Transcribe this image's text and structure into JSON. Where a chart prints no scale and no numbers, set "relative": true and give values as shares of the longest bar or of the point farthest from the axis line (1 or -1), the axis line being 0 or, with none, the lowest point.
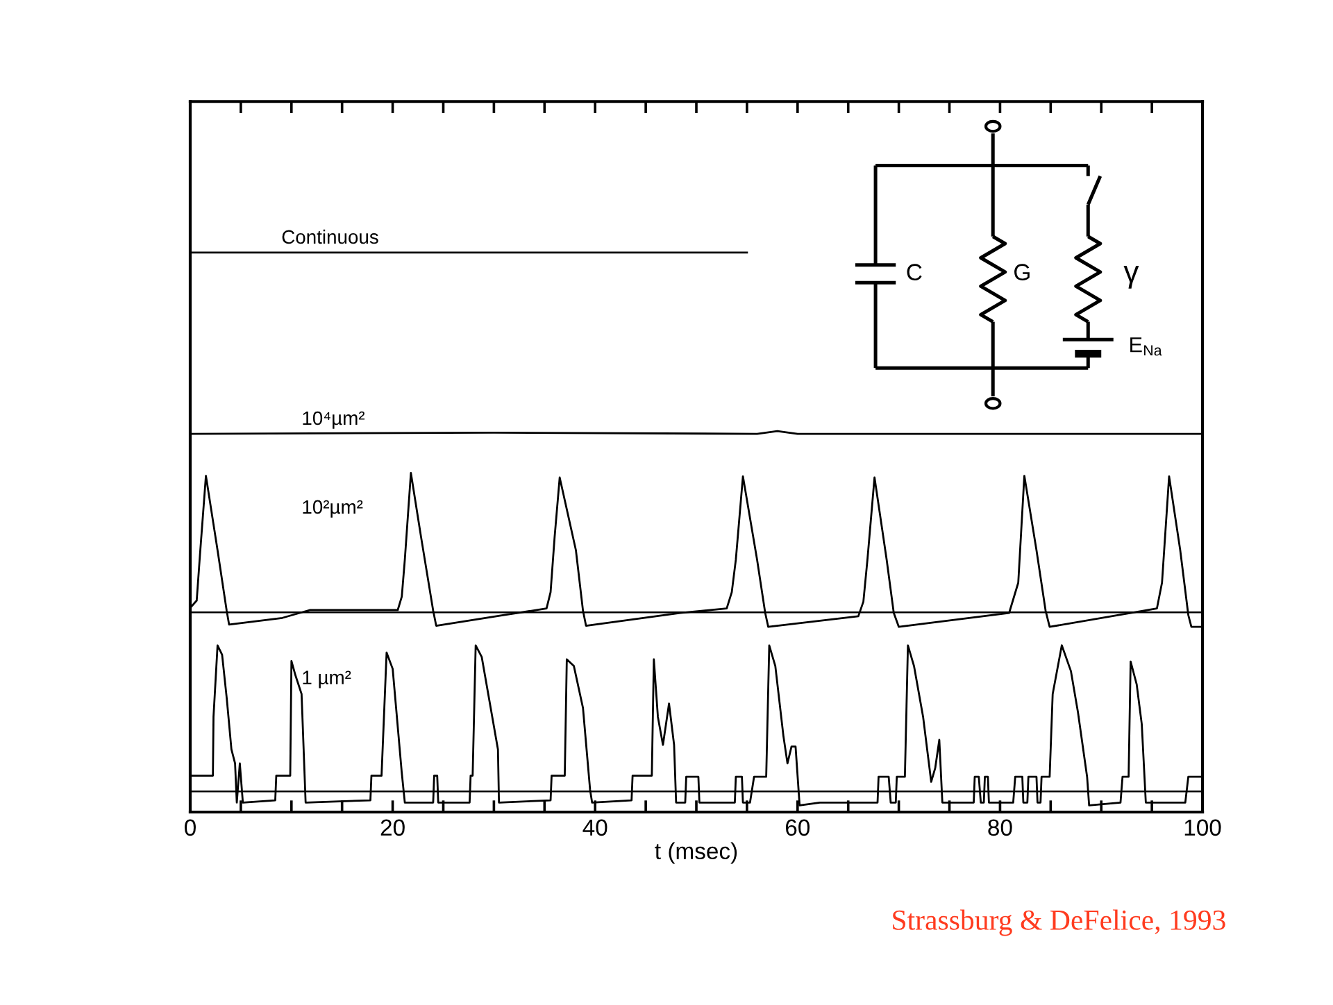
{
  "chart_data": {
    "type": "line",
    "relative": true,
    "xlabel": "t (msec)",
    "xlim": [
      0,
      100
    ],
    "xticks": [
      0,
      {
        "value": 5,
        "label": null
      },
      {
        "value": 10,
        "label": null
      },
      {
        "value": 15,
        "label": null
      },
      20,
      {
        "value": 25,
        "label": null
      },
      {
        "value": 30,
        "label": null
      },
      {
        "value": 35,
        "label": null
      },
      40,
      {
        "value": 45,
        "label": null
      },
      {
        "value": 50,
        "label": null
      },
      {
        "value": 55,
        "label": null
      },
      60,
      {
        "value": 65,
        "label": null
      },
      {
        "value": 70,
        "label": null
      },
      {
        "value": 75,
        "label": null
      },
      80,
      {
        "value": 85,
        "label": null
      },
      {
        "value": 90,
        "label": null
      },
      {
        "value": 95,
        "label": null
      },
      100
    ],
    "grid": false,
    "legend": false,
    "marker": "none",
    "line_style": "solid",
    "ref_lines": [
      {
        "axis": "y",
        "value": 0.357,
        "color": "#000000"
      },
      {
        "axis": "y",
        "value": 0.037,
        "color": "#000000"
      }
    ],
    "annotations": [
      "C",
      "G",
      "γ",
      "E$_{Na}$",
      "Strassburg & DeFelice, 1993"
    ],
    "series": [
      {
        "name": "Continuous",
        "color": "#000000",
        "x": [
          0,
          55
        ],
        "values": [
          1.0,
          1.0
        ]
      },
      {
        "name": "10⁴µm²",
        "color": "#000000",
        "x": [
          0,
          30,
          56,
          58,
          60,
          100
        ],
        "values": [
          0.676,
          0.678,
          0.676,
          0.681,
          0.676,
          0.676
        ]
      },
      {
        "name": "10²µm²",
        "color": "#000000",
        "x": [
          0,
          0.64,
          0.96,
          1.55,
          2.7,
          3.6,
          3.84,
          9.1,
          11.8,
          20.5,
          20.9,
          21.2,
          21.8,
          22.8,
          24.0,
          24.3,
          31.0,
          35.2,
          35.6,
          36.0,
          36.5,
          38.1,
          38.8,
          39.1,
          48.4,
          53.0,
          53.5,
          53.9,
          54.6,
          56.0,
          56.8,
          57.1,
          66.0,
          66.5,
          66.9,
          67.6,
          68.8,
          69.5,
          70.0,
          80.9,
          81.8,
          82.4,
          83.6,
          84.5,
          84.9,
          95.5,
          96.0,
          96.7,
          97.8,
          98.6,
          98.9,
          100
        ],
        "values": [
          0.365,
          0.378,
          0.459,
          0.601,
          0.468,
          0.36,
          0.335,
          0.347,
          0.361,
          0.361,
          0.385,
          0.451,
          0.606,
          0.492,
          0.36,
          0.333,
          0.352,
          0.364,
          0.393,
          0.492,
          0.598,
          0.468,
          0.36,
          0.333,
          0.356,
          0.364,
          0.393,
          0.451,
          0.6,
          0.451,
          0.356,
          0.331,
          0.35,
          0.376,
          0.451,
          0.598,
          0.451,
          0.356,
          0.331,
          0.356,
          0.41,
          0.601,
          0.468,
          0.36,
          0.331,
          0.364,
          0.41,
          0.6,
          0.468,
          0.352,
          0.331,
          0.331
        ]
      },
      {
        "name": "1 µm²",
        "color": "#000000",
        "x": [
          0,
          2.24,
          2.3,
          2.7,
          3.15,
          3.61,
          4.07,
          4.43,
          4.6,
          4.9,
          5.2,
          8.4,
          8.5,
          9.88,
          10.0,
          10.4,
          11.0,
          11.4,
          17.8,
          17.9,
          18.9,
          19.4,
          20.0,
          20.9,
          21.2,
          24.0,
          24.1,
          24.4,
          24.5,
          27.6,
          27.7,
          27.9,
          28.2,
          28.8,
          30.4,
          30.5,
          35.6,
          35.7,
          37.0,
          37.2,
          37.9,
          38.8,
          39.5,
          39.7,
          43.6,
          43.7,
          45.6,
          45.8,
          46.2,
          46.7,
          47.3,
          47.8,
          48.0,
          48.9,
          49.0,
          50.2,
          50.3,
          53.8,
          53.9,
          54.5,
          54.6,
          55.3,
          55.7,
          56.9,
          57.2,
          57.8,
          58.6,
          59.0,
          59.4,
          59.8,
          60.2,
          62.2,
          67.9,
          68.0,
          69.0,
          69.2,
          69.7,
          69.8,
          70.6,
          70.9,
          71.5,
          72.4,
          73.2,
          73.6,
          74.0,
          74.3,
          77.4,
          77.5,
          77.9,
          78.1,
          78.4,
          78.5,
          78.8,
          78.9,
          81.3,
          81.5,
          82.2,
          82.3,
          82.7,
          82.8,
          83.6,
          83.7,
          84.0,
          84.1,
          84.9,
          85.2,
          86.1,
          87.0,
          87.7,
          88.6,
          88.8,
          91.9,
          92.1,
          92.7,
          92.9,
          93.5,
          94.0,
          94.4,
          98.3,
          98.6,
          100
        ],
        "values": [
          0.065,
          0.065,
          0.17,
          0.298,
          0.281,
          0.203,
          0.112,
          0.087,
          0.017,
          0.087,
          0.017,
          0.021,
          0.065,
          0.065,
          0.27,
          0.244,
          0.211,
          0.017,
          0.021,
          0.065,
          0.065,
          0.285,
          0.256,
          0.07,
          0.017,
          0.017,
          0.065,
          0.065,
          0.017,
          0.017,
          0.065,
          0.065,
          0.298,
          0.277,
          0.112,
          0.017,
          0.021,
          0.065,
          0.065,
          0.273,
          0.261,
          0.186,
          0.04,
          0.017,
          0.021,
          0.065,
          0.065,
          0.273,
          0.17,
          0.12,
          0.194,
          0.12,
          0.017,
          0.017,
          0.063,
          0.063,
          0.017,
          0.017,
          0.063,
          0.063,
          0.017,
          0.017,
          0.063,
          0.063,
          0.298,
          0.261,
          0.136,
          0.087,
          0.117,
          0.117,
          0.012,
          0.017,
          0.017,
          0.063,
          0.063,
          0.017,
          0.017,
          0.063,
          0.063,
          0.298,
          0.261,
          0.17,
          0.054,
          0.079,
          0.129,
          0.017,
          0.017,
          0.063,
          0.063,
          0.017,
          0.017,
          0.063,
          0.063,
          0.017,
          0.017,
          0.063,
          0.063,
          0.017,
          0.017,
          0.063,
          0.063,
          0.017,
          0.017,
          0.063,
          0.063,
          0.211,
          0.298,
          0.252,
          0.178,
          0.063,
          0.012,
          0.017,
          0.063,
          0.063,
          0.269,
          0.228,
          0.157,
          0.017,
          0.017,
          0.063,
          0.063
        ]
      }
    ]
  }
}
